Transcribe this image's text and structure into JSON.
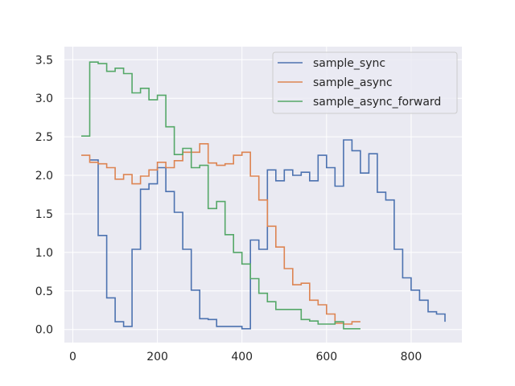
{
  "chart_data": {
    "type": "line",
    "drawstyle": "steps-post",
    "title": "",
    "xlabel": "",
    "ylabel": "",
    "xlim": [
      -20,
      920
    ],
    "ylim": [
      -0.17,
      3.67
    ],
    "xticks": [
      0,
      200,
      400,
      600,
      800
    ],
    "yticks": [
      0.0,
      0.5,
      1.0,
      1.5,
      2.0,
      2.5,
      3.0,
      3.5
    ],
    "xtick_labels": [
      "0",
      "200",
      "400",
      "600",
      "800"
    ],
    "ytick_labels": [
      "0.0",
      "0.5",
      "1.0",
      "1.5",
      "2.0",
      "2.5",
      "3.0",
      "3.5"
    ],
    "grid": true,
    "background": "#eaeaf2",
    "legend_position": "top-right",
    "series": [
      {
        "name": "sample_sync",
        "color": "#4c72b0",
        "x": [
          40,
          60,
          80,
          100,
          120,
          140,
          160,
          180,
          200,
          220,
          240,
          260,
          280,
          300,
          320,
          340,
          360,
          380,
          400,
          420,
          440,
          460,
          480,
          500,
          520,
          540,
          560,
          580,
          600,
          620,
          640,
          660,
          680,
          700,
          720,
          740,
          760,
          780,
          800,
          820,
          840,
          860,
          880
        ],
        "y": [
          2.2,
          1.22,
          0.41,
          0.1,
          0.04,
          1.04,
          1.82,
          1.89,
          2.1,
          1.79,
          1.52,
          1.04,
          0.51,
          0.14,
          0.13,
          0.04,
          0.04,
          0.04,
          0.01,
          1.16,
          1.04,
          2.07,
          1.93,
          2.07,
          2.0,
          2.04,
          1.93,
          2.26,
          2.1,
          1.86,
          2.46,
          2.32,
          2.03,
          2.28,
          1.78,
          1.68,
          1.04,
          0.67,
          0.51,
          0.38,
          0.23,
          0.2,
          0.1
        ]
      },
      {
        "name": "sample_async",
        "color": "#dd8452",
        "x": [
          20,
          40,
          60,
          80,
          100,
          120,
          140,
          160,
          180,
          200,
          220,
          240,
          260,
          280,
          300,
          320,
          340,
          360,
          380,
          400,
          420,
          440,
          460,
          480,
          500,
          520,
          540,
          560,
          580,
          600,
          620,
          640,
          660,
          680
        ],
        "y": [
          2.26,
          2.17,
          2.15,
          2.1,
          1.95,
          2.01,
          1.89,
          1.99,
          2.07,
          2.17,
          2.1,
          2.19,
          2.3,
          2.3,
          2.41,
          2.16,
          2.13,
          2.15,
          2.26,
          2.3,
          1.99,
          1.68,
          1.34,
          1.07,
          0.79,
          0.58,
          0.6,
          0.38,
          0.32,
          0.2,
          0.08,
          0.07,
          0.1,
          0.1
        ]
      },
      {
        "name": "sample_async_forward",
        "color": "#55a868",
        "x": [
          20,
          40,
          60,
          80,
          100,
          120,
          140,
          160,
          180,
          200,
          220,
          240,
          260,
          280,
          300,
          320,
          340,
          360,
          380,
          400,
          420,
          440,
          460,
          480,
          500,
          520,
          540,
          560,
          580,
          600,
          620,
          640,
          660,
          680
        ],
        "y": [
          2.51,
          3.47,
          3.45,
          3.35,
          3.39,
          3.32,
          3.07,
          3.13,
          2.98,
          3.04,
          2.63,
          2.27,
          2.35,
          2.1,
          2.13,
          1.57,
          1.66,
          1.23,
          1.0,
          0.85,
          0.66,
          0.47,
          0.36,
          0.26,
          0.26,
          0.26,
          0.13,
          0.11,
          0.07,
          0.07,
          0.1,
          0.01,
          0.01,
          0.01
        ]
      }
    ]
  }
}
